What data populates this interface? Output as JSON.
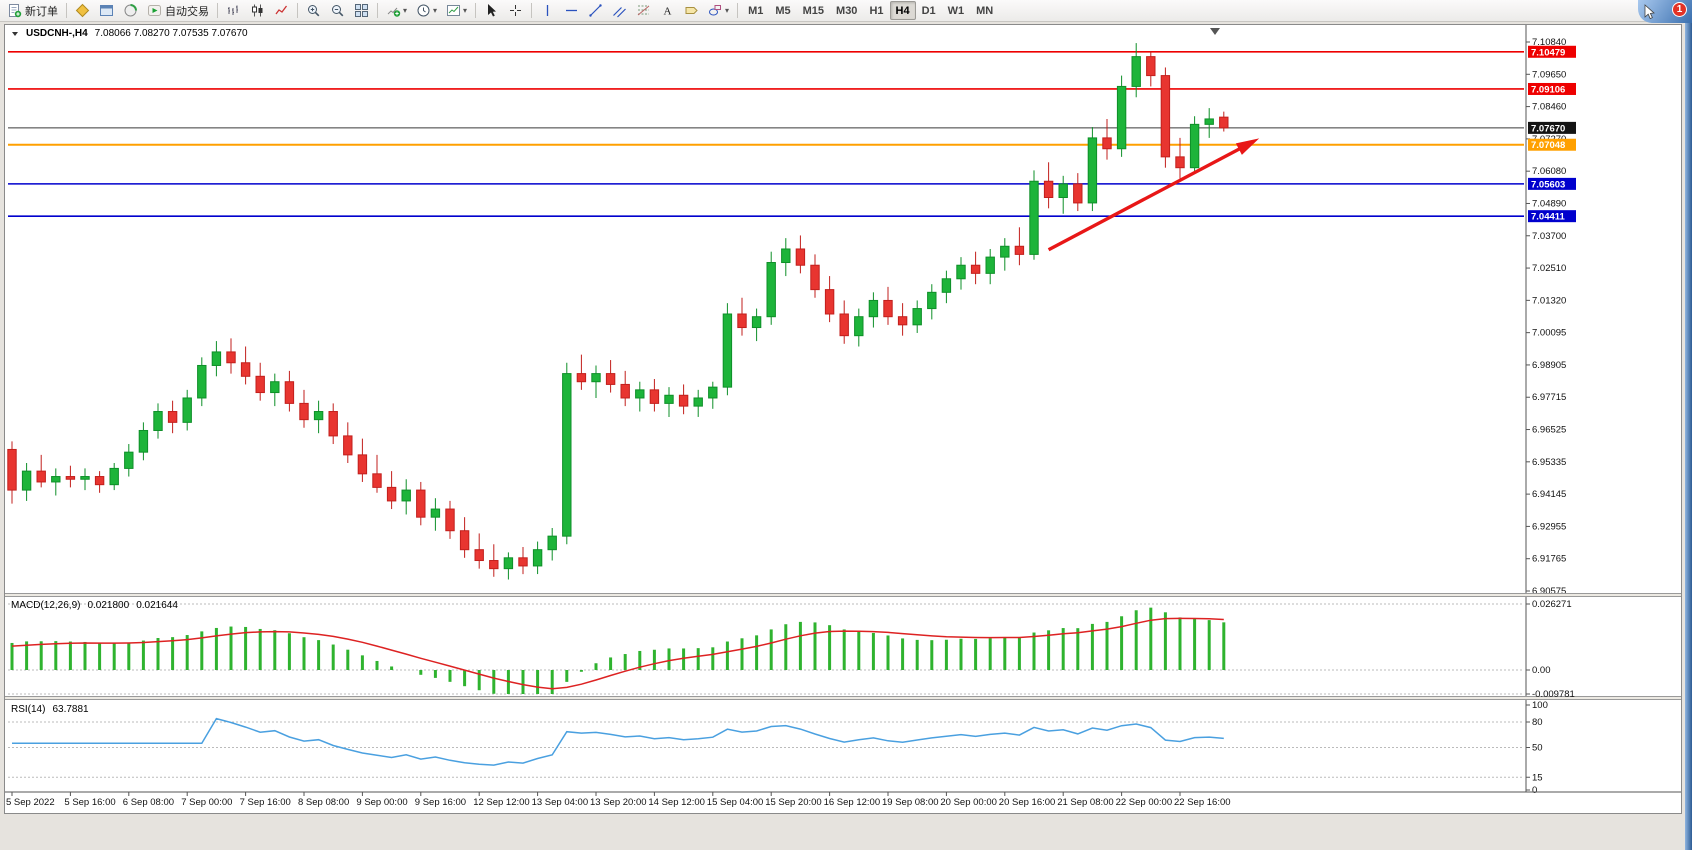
{
  "window": {
    "notification_badge": "1"
  },
  "toolbar": {
    "new_order": "新订单",
    "autotrading": "自动交易",
    "timeframes": [
      "M1",
      "M5",
      "M15",
      "M30",
      "H1",
      "H4",
      "D1",
      "W1",
      "MN"
    ],
    "active_timeframe": "H4"
  },
  "header": {
    "symbol_period": "USDCNH-,H4",
    "ohlc_readout": "7.08066 7.08270 7.07535 7.07670"
  },
  "macd_header": {
    "title": "MACD(12,26,9)",
    "value_main": "0.021800",
    "value_signal": "0.021644"
  },
  "rsi_header": {
    "title": "RSI(14)",
    "value": "63.7881"
  },
  "chart_data": {
    "type": "candlestick",
    "symbol": "USDCNH-",
    "timeframe": "H4",
    "colors": {
      "bull": "#1db43a",
      "bull_border": "#0e8f28",
      "bear": "#e83530",
      "bear_border": "#c21f1c",
      "axis": "#555555"
    },
    "price_scale": [
      "7.10840",
      "7.09650",
      "7.08460",
      "7.07270",
      "7.06080",
      "7.04890",
      "7.03700",
      "7.02510",
      "7.01320",
      "7.00095",
      "6.98905",
      "6.97715",
      "6.96525",
      "6.95335",
      "6.94145",
      "6.92955",
      "6.91765",
      "6.90575"
    ],
    "hlines": [
      {
        "name": "resistance-line-upper",
        "price": 7.10479,
        "tag": "7.10479",
        "color": "#ee0000",
        "tag_bg": "#ee0000",
        "width": 1.6
      },
      {
        "name": "resistance-line-lower",
        "price": 7.09106,
        "tag": "7.09106",
        "color": "#ee0000",
        "tag_bg": "#ee0000",
        "width": 1.6
      },
      {
        "name": "current-price-line",
        "price": 7.0767,
        "tag": "7.07670",
        "color": "#3a3a3a",
        "tag_bg": "#141414",
        "width": 1
      },
      {
        "name": "pivot-line-orange",
        "price": 7.07048,
        "tag": "7.07048",
        "color": "#ffa000",
        "tag_bg": "#ffa000",
        "width": 2
      },
      {
        "name": "support-line-upper",
        "price": 7.05603,
        "tag": "7.05603",
        "color": "#0000cd",
        "tag_bg": "#0000cd",
        "width": 1.6
      },
      {
        "name": "support-line-lower",
        "price": 7.04411,
        "tag": "7.04411",
        "color": "#0000cd",
        "tag_bg": "#0000cd",
        "width": 1.6
      }
    ],
    "trend_arrow": {
      "from_index": 71,
      "from_price": 7.0317,
      "to_index": 85,
      "to_price": 7.0716,
      "color": "#e81717"
    },
    "candles_ohlc": [
      [
        6.958,
        6.961,
        6.938,
        6.943
      ],
      [
        6.943,
        6.953,
        6.939,
        6.95
      ],
      [
        6.95,
        6.956,
        6.944,
        6.946
      ],
      [
        6.946,
        6.951,
        6.941,
        6.948
      ],
      [
        6.948,
        6.952,
        6.944,
        6.947
      ],
      [
        6.947,
        6.951,
        6.943,
        6.948
      ],
      [
        6.948,
        6.95,
        6.942,
        6.945
      ],
      [
        6.945,
        6.953,
        6.943,
        6.951
      ],
      [
        6.951,
        6.96,
        6.948,
        6.957
      ],
      [
        6.957,
        6.968,
        6.954,
        6.965
      ],
      [
        6.965,
        6.975,
        6.962,
        6.972
      ],
      [
        6.972,
        6.976,
        6.964,
        6.968
      ],
      [
        6.968,
        6.98,
        6.965,
        6.977
      ],
      [
        6.977,
        6.992,
        6.974,
        6.989
      ],
      [
        6.989,
        6.998,
        6.985,
        6.994
      ],
      [
        6.994,
        6.999,
        6.986,
        6.99
      ],
      [
        6.99,
        6.996,
        6.982,
        6.985
      ],
      [
        6.985,
        6.99,
        6.976,
        6.979
      ],
      [
        6.979,
        6.986,
        6.974,
        6.983
      ],
      [
        6.983,
        6.987,
        6.972,
        6.975
      ],
      [
        6.975,
        6.98,
        6.966,
        6.969
      ],
      [
        6.969,
        6.976,
        6.964,
        6.972
      ],
      [
        6.972,
        6.975,
        6.96,
        6.963
      ],
      [
        6.963,
        6.968,
        6.953,
        6.956
      ],
      [
        6.956,
        6.962,
        6.946,
        6.949
      ],
      [
        6.949,
        6.956,
        6.942,
        6.944
      ],
      [
        6.944,
        6.95,
        6.936,
        6.939
      ],
      [
        6.939,
        6.947,
        6.934,
        6.943
      ],
      [
        6.943,
        6.946,
        6.93,
        6.933
      ],
      [
        6.933,
        6.94,
        6.928,
        6.936
      ],
      [
        6.936,
        6.939,
        6.925,
        6.928
      ],
      [
        6.928,
        6.933,
        6.918,
        6.921
      ],
      [
        6.921,
        6.927,
        6.914,
        6.917
      ],
      [
        6.917,
        6.923,
        6.911,
        6.914
      ],
      [
        6.914,
        6.92,
        6.91,
        6.918
      ],
      [
        6.918,
        6.922,
        6.912,
        6.915
      ],
      [
        6.915,
        6.924,
        6.912,
        6.921
      ],
      [
        6.921,
        6.929,
        6.917,
        6.926
      ],
      [
        6.926,
        6.99,
        6.923,
        6.986
      ],
      [
        6.986,
        6.993,
        6.98,
        6.983
      ],
      [
        6.983,
        6.989,
        6.977,
        6.986
      ],
      [
        6.986,
        6.991,
        6.979,
        6.982
      ],
      [
        6.982,
        6.987,
        6.974,
        6.977
      ],
      [
        6.977,
        6.983,
        6.972,
        6.98
      ],
      [
        6.98,
        6.984,
        6.972,
        6.975
      ],
      [
        6.975,
        6.981,
        6.97,
        6.978
      ],
      [
        6.978,
        6.982,
        6.971,
        6.974
      ],
      [
        6.974,
        6.98,
        6.97,
        6.977
      ],
      [
        6.977,
        6.983,
        6.973,
        6.981
      ],
      [
        6.981,
        7.012,
        6.978,
        7.008
      ],
      [
        7.008,
        7.014,
        7.0,
        7.003
      ],
      [
        7.003,
        7.01,
        6.998,
        7.007
      ],
      [
        7.007,
        7.031,
        7.004,
        7.027
      ],
      [
        7.027,
        7.036,
        7.022,
        7.032
      ],
      [
        7.032,
        7.037,
        7.023,
        7.026
      ],
      [
        7.026,
        7.03,
        7.014,
        7.017
      ],
      [
        7.017,
        7.022,
        7.005,
        7.008
      ],
      [
        7.008,
        7.013,
        6.997,
        7.0
      ],
      [
        7.0,
        7.01,
        6.996,
        7.007
      ],
      [
        7.007,
        7.016,
        7.003,
        7.013
      ],
      [
        7.013,
        7.018,
        7.004,
        7.007
      ],
      [
        7.007,
        7.012,
        7.0,
        7.004
      ],
      [
        7.004,
        7.013,
        7.001,
        7.01
      ],
      [
        7.01,
        7.019,
        7.006,
        7.016
      ],
      [
        7.016,
        7.024,
        7.012,
        7.021
      ],
      [
        7.021,
        7.029,
        7.017,
        7.026
      ],
      [
        7.026,
        7.031,
        7.019,
        7.023
      ],
      [
        7.023,
        7.032,
        7.019,
        7.029
      ],
      [
        7.029,
        7.036,
        7.024,
        7.033
      ],
      [
        7.033,
        7.04,
        7.026,
        7.03
      ],
      [
        7.03,
        7.061,
        7.028,
        7.057
      ],
      [
        7.057,
        7.064,
        7.047,
        7.051
      ],
      [
        7.051,
        7.059,
        7.045,
        7.056
      ],
      [
        7.056,
        7.06,
        7.046,
        7.049
      ],
      [
        7.049,
        7.077,
        7.046,
        7.073
      ],
      [
        7.073,
        7.08,
        7.065,
        7.069
      ],
      [
        7.069,
        7.096,
        7.066,
        7.092
      ],
      [
        7.092,
        7.108,
        7.088,
        7.103
      ],
      [
        7.103,
        7.105,
        7.092,
        7.096
      ],
      [
        7.096,
        7.099,
        7.062,
        7.066
      ],
      [
        7.066,
        7.073,
        7.058,
        7.062
      ],
      [
        7.062,
        7.081,
        7.06,
        7.078
      ],
      [
        7.078,
        7.084,
        7.073,
        7.08
      ],
      [
        7.08066,
        7.0827,
        7.07535,
        7.0767
      ]
    ],
    "time_labels": [
      "5 Sep 2022",
      "5 Sep 16:00",
      "6 Sep 08:00",
      "7 Sep 00:00",
      "7 Sep 16:00",
      "8 Sep 08:00",
      "9 Sep 00:00",
      "9 Sep 16:00",
      "12 Sep 12:00",
      "13 Sep 04:00",
      "13 Sep 20:00",
      "14 Sep 12:00",
      "15 Sep 04:00",
      "15 Sep 20:00",
      "16 Sep 12:00",
      "19 Sep 08:00",
      "20 Sep 00:00",
      "20 Sep 16:00",
      "21 Sep 08:00",
      "22 Sep 00:00",
      "22 Sep 16:00"
    ],
    "macd": {
      "fast": 12,
      "slow": 26,
      "signal": 9,
      "current_main": 0.0218,
      "current_signal": 0.021644,
      "scale_labels": [
        "0.026271",
        "0.00",
        "-0.009781"
      ],
      "histogram_color": "#2fb32f",
      "signal_color": "#dd2222"
    },
    "rsi": {
      "period": 14,
      "current": 63.7881,
      "scale_labels": [
        "100",
        "80",
        "50",
        "15",
        "0"
      ],
      "levels": [
        80,
        50,
        15
      ],
      "line_color": "#4aa0e0"
    }
  }
}
